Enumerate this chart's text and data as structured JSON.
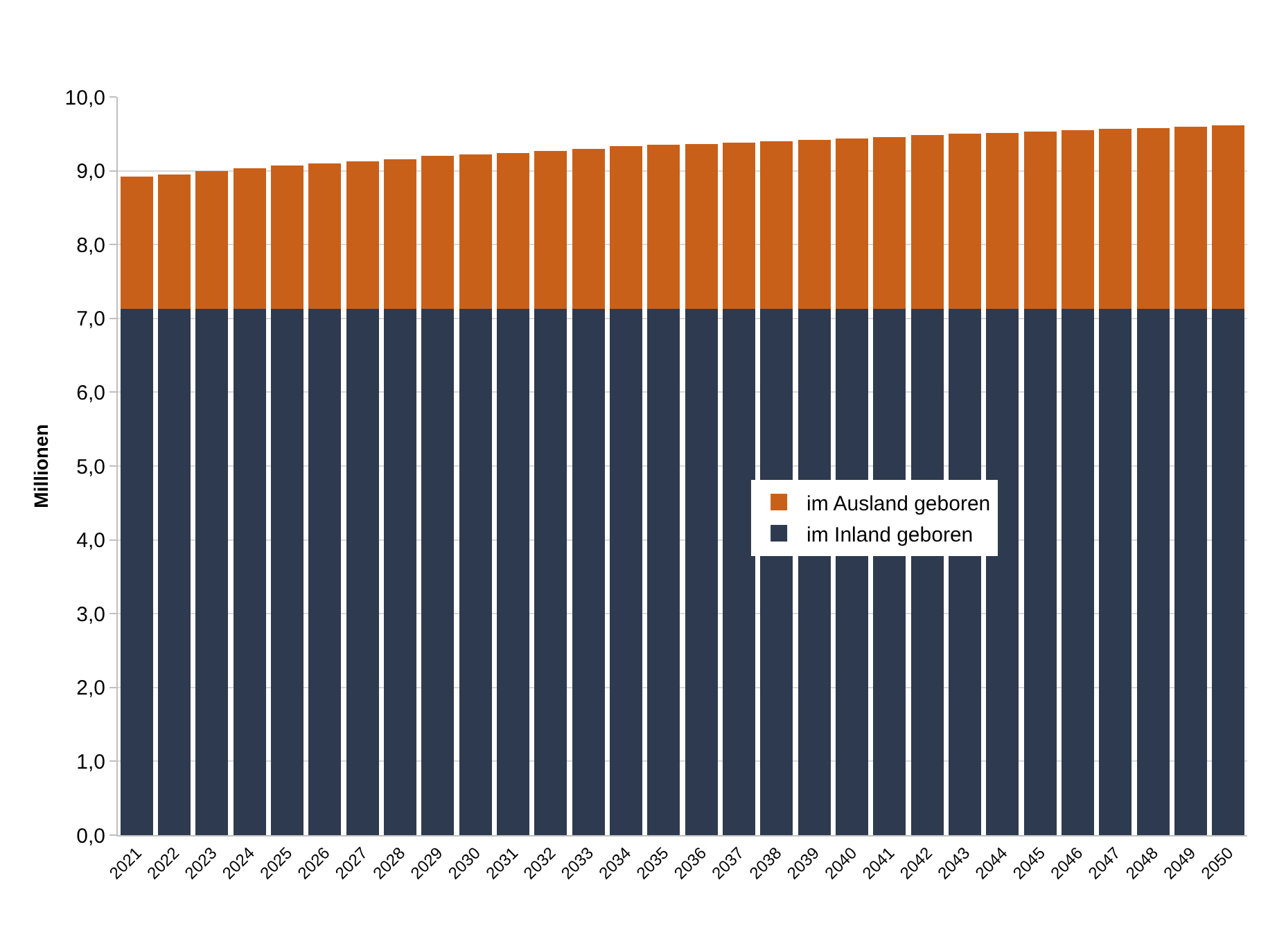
{
  "chart_data": {
    "type": "bar",
    "stacked": true,
    "ylabel": "Millionen",
    "categories": [
      "2021",
      "2022",
      "2023",
      "2024",
      "2025",
      "2026",
      "2027",
      "2028",
      "2029",
      "2030",
      "2031",
      "2032",
      "2033",
      "2034",
      "2035",
      "2036",
      "2037",
      "2038",
      "2039",
      "2040",
      "2041",
      "2042",
      "2043",
      "2044",
      "2045",
      "2046",
      "2047",
      "2048",
      "2049",
      "2050"
    ],
    "series": [
      {
        "name": "im Inland geboren",
        "color": "#2e3a4f",
        "values": [
          7.13,
          7.13,
          7.13,
          7.13,
          7.13,
          7.13,
          7.13,
          7.13,
          7.13,
          7.13,
          7.13,
          7.13,
          7.13,
          7.13,
          7.13,
          7.13,
          7.13,
          7.13,
          7.13,
          7.13,
          7.13,
          7.13,
          7.13,
          7.13,
          7.13,
          7.13,
          7.13,
          7.13,
          7.13,
          7.13
        ]
      },
      {
        "name": "im Ausland geboren",
        "color": "#c9601a",
        "values": [
          1.79,
          1.82,
          1.87,
          1.9,
          1.94,
          1.97,
          2.0,
          2.03,
          2.07,
          2.09,
          2.11,
          2.14,
          2.17,
          2.2,
          2.22,
          2.23,
          2.25,
          2.27,
          2.29,
          2.31,
          2.33,
          2.35,
          2.37,
          2.38,
          2.4,
          2.42,
          2.44,
          2.45,
          2.47,
          2.49
        ]
      }
    ],
    "ylim": [
      0,
      10
    ],
    "yticks": [
      {
        "value": 0,
        "label": "0,0"
      },
      {
        "value": 1,
        "label": "1,0"
      },
      {
        "value": 2,
        "label": "2,0"
      },
      {
        "value": 3,
        "label": "3,0"
      },
      {
        "value": 4,
        "label": "4,0"
      },
      {
        "value": 5,
        "label": "5,0"
      },
      {
        "value": 6,
        "label": "6,0"
      },
      {
        "value": 7,
        "label": "7,0"
      },
      {
        "value": 8,
        "label": "8,0"
      },
      {
        "value": 9,
        "label": "9,0"
      },
      {
        "value": 10,
        "label": "10,0"
      }
    ],
    "grid": "y",
    "legend": "center"
  }
}
